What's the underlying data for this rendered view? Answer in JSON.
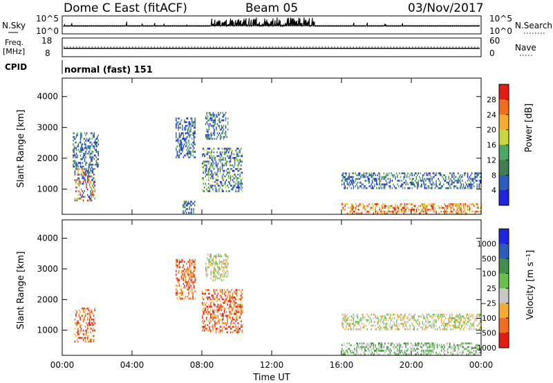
{
  "header": {
    "station": "Dome C East (fitACF)",
    "beam": "Beam 05",
    "date": "03/Nov/2017"
  },
  "panels": {
    "nsky_label": "N.Sky",
    "nsearch_label": "N.Search",
    "nsky_ticks": [
      "10^5",
      "10^0"
    ],
    "nsearch_ticks": [
      "10^5",
      "10^0"
    ],
    "freq_label": "Freq.",
    "freq_unit": "[MHz]",
    "freq_ticks": [
      "18",
      "8"
    ],
    "nave_label": "Nave",
    "nave_ticks": [
      "60",
      "0"
    ],
    "cpid_label": "CPID",
    "cpid_text": "normal (fast) 151"
  },
  "colors": {
    "power": [
      "#1f23e6",
      "#2a5cc0",
      "#3f7f52",
      "#4aa860",
      "#c8d83a",
      "#f7ab2c",
      "#f06e1c",
      "#e81a12"
    ],
    "velocity": [
      "#e81a12",
      "#f06e1c",
      "#f7ab2c",
      "#c8c8c8",
      "#66c04a",
      "#3f8f4a",
      "#2a5cc0",
      "#1f23e6"
    ]
  },
  "chart_data": [
    {
      "type": "heatmap",
      "name": "Power",
      "title": "",
      "xlabel": "",
      "ylabel": "Slant Range [km]",
      "x_ticks": [
        "00:00",
        "04:00",
        "08:00",
        "12:00",
        "16:00",
        "20:00",
        "00:00"
      ],
      "y_ticks": [
        1000,
        2000,
        3000,
        4000
      ],
      "xlim": [
        0,
        24
      ],
      "ylim": [
        180,
        4600
      ],
      "colorbar": {
        "label": "Power [dB]",
        "tick_labels": [
          "4",
          "8",
          "12",
          "16",
          "20",
          "24",
          "28"
        ],
        "range": [
          0,
          32
        ]
      },
      "echo_regions": [
        {
          "t": [
            0.7,
            1.9
          ],
          "r": [
            600,
            1700
          ],
          "level": "mixed-high"
        },
        {
          "t": [
            0.6,
            2.1
          ],
          "r": [
            1700,
            2800
          ],
          "level": "low"
        },
        {
          "t": [
            6.5,
            7.6
          ],
          "r": [
            2000,
            3300
          ],
          "level": "low"
        },
        {
          "t": [
            8.2,
            9.5
          ],
          "r": [
            2600,
            3500
          ],
          "level": "low"
        },
        {
          "t": [
            8.0,
            10.3
          ],
          "r": [
            900,
            2300
          ],
          "level": "low-mid"
        },
        {
          "t": [
            6.9,
            7.6
          ],
          "r": [
            200,
            600
          ],
          "level": "low"
        },
        {
          "t": [
            16.0,
            24.0
          ],
          "r": [
            180,
            500
          ],
          "level": "high"
        },
        {
          "t": [
            16.0,
            24.0
          ],
          "r": [
            1000,
            1500
          ],
          "level": "low"
        }
      ]
    },
    {
      "type": "heatmap",
      "name": "Velocity",
      "title": "",
      "xlabel": "Time UT",
      "ylabel": "Slant Range [km]",
      "x_ticks": [
        "00:00",
        "04:00",
        "08:00",
        "12:00",
        "16:00",
        "20:00",
        "00:00"
      ],
      "y_ticks": [
        1000,
        2000,
        3000,
        4000
      ],
      "xlim": [
        0,
        24
      ],
      "ylim": [
        180,
        4600
      ],
      "colorbar": {
        "label": "Velocity [m s⁻¹]",
        "tick_labels": [
          "1000",
          "500",
          "100",
          "25",
          "−25",
          "−100",
          "−500",
          "−1000"
        ]
      },
      "echo_regions": [
        {
          "t": [
            0.7,
            1.9
          ],
          "r": [
            600,
            1700
          ],
          "level": "negative"
        },
        {
          "t": [
            6.5,
            7.6
          ],
          "r": [
            2000,
            3300
          ],
          "level": "negative"
        },
        {
          "t": [
            8.2,
            9.5
          ],
          "r": [
            2600,
            3500
          ],
          "level": "near-zero"
        },
        {
          "t": [
            8.0,
            10.3
          ],
          "r": [
            900,
            2300
          ],
          "level": "negative"
        },
        {
          "t": [
            16.0,
            24.0
          ],
          "r": [
            180,
            600
          ],
          "level": "positive"
        },
        {
          "t": [
            16.0,
            24.0
          ],
          "r": [
            1000,
            1500
          ],
          "level": "near-zero"
        }
      ]
    }
  ]
}
